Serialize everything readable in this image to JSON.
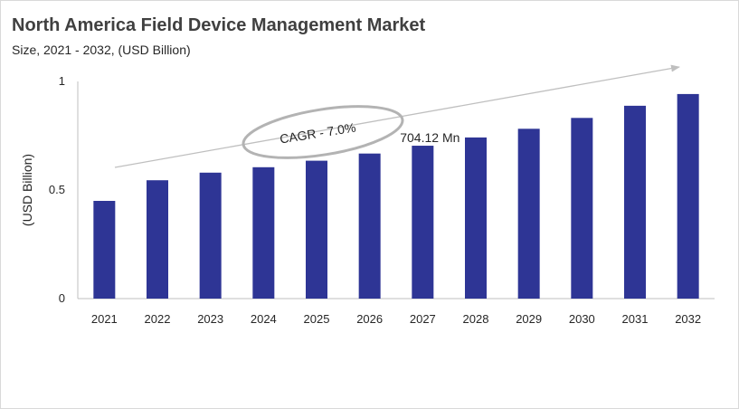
{
  "title": "North America Field Device Management Market",
  "subtitle": "Size, 2021 - 2032, (USD Billion)",
  "chart_data": {
    "type": "bar",
    "categories": [
      "2021",
      "2022",
      "2023",
      "2024",
      "2025",
      "2026",
      "2027",
      "2028",
      "2029",
      "2030",
      "2031",
      "2032"
    ],
    "values": [
      0.45,
      0.545,
      0.58,
      0.605,
      0.635,
      0.668,
      0.704,
      0.742,
      0.782,
      0.832,
      0.888,
      0.942
    ],
    "ylabel": "(USD Billion)",
    "ylim": [
      0,
      1
    ],
    "yticks": [
      0,
      0.5,
      1
    ],
    "ytick_labels": [
      "0",
      "0.5",
      "1"
    ],
    "grid": false,
    "colors": {
      "bar": "#2e3595",
      "axis": "#bfbfbf",
      "arrow": "#bfbfbf",
      "ellipse": "#b3b3b3"
    },
    "annotations": {
      "cagr": "CAGR - 7.0%",
      "value_label": "704.12 Mn",
      "value_label_category": "2027"
    }
  }
}
